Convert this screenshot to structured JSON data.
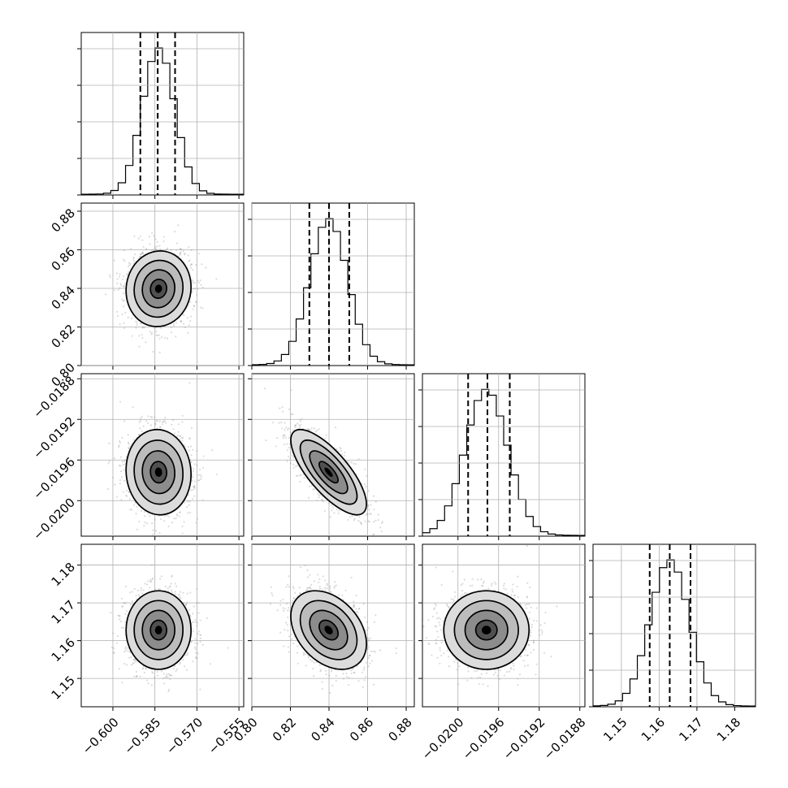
{
  "chart_data": {
    "type": "corner",
    "title": "",
    "grid": true,
    "colors": {
      "contour": "#000000",
      "points": "#9a9a9a",
      "hist": "#000000"
    },
    "parameters": [
      {
        "name": "",
        "range": [
          -0.6113,
          -0.5533
        ],
        "mean": -0.5837,
        "sd": 0.0058,
        "ticks": [
          -0.6,
          -0.585,
          -0.57,
          -0.555
        ],
        "tick_labels": [
          "−0.600",
          "−0.585",
          "−0.570",
          "−0.555"
        ],
        "quantiles": [
          -0.5902,
          -0.584,
          -0.5778
        ],
        "hist_peak": 58
      },
      {
        "name": "",
        "range": [
          0.8,
          0.8842
        ],
        "mean": 0.8398,
        "sd": 0.0098,
        "ticks": [
          0.8,
          0.82,
          0.84,
          0.86,
          0.88
        ],
        "tick_labels": [
          "0.80",
          "0.82",
          "0.84",
          "0.86",
          "0.88"
        ],
        "quantiles": [
          0.8298,
          0.84,
          0.8505
        ],
        "hist_peak": 58
      },
      {
        "name": "",
        "range": [
          -0.02035,
          -0.01875
        ],
        "mean": -0.01972,
        "sd": 0.00021,
        "ticks": [
          -0.02,
          -0.0196,
          -0.0192,
          -0.0188
        ],
        "tick_labels": [
          "−0.0200",
          "−0.0196",
          "−0.0192",
          "−0.0188"
        ],
        "quantiles": [
          -0.0199,
          -0.01971,
          -0.01949
        ],
        "hist_peak": 58
      },
      {
        "name": "",
        "range": [
          1.1425,
          1.1855
        ],
        "mean": 1.1628,
        "sd": 0.0052,
        "ticks": [
          1.15,
          1.16,
          1.17,
          1.18
        ],
        "tick_labels": [
          "1.15",
          "1.16",
          "1.17",
          "1.18"
        ],
        "quantiles": [
          1.1575,
          1.1628,
          1.1683
        ],
        "hist_peak": 58
      }
    ],
    "correlations": [
      {
        "i": 1,
        "j": 0,
        "rho": 0.05
      },
      {
        "i": 2,
        "j": 0,
        "rho": -0.05
      },
      {
        "i": 2,
        "j": 1,
        "rho": -0.75
      },
      {
        "i": 3,
        "j": 0,
        "rho": 0.0
      },
      {
        "i": 3,
        "j": 1,
        "rho": -0.35
      },
      {
        "i": 3,
        "j": 2,
        "rho": 0.0
      }
    ],
    "contour_levels_sigma": [
      0.5,
      1.0,
      1.5,
      2.0
    ],
    "samples_per_panel": 1400
  }
}
